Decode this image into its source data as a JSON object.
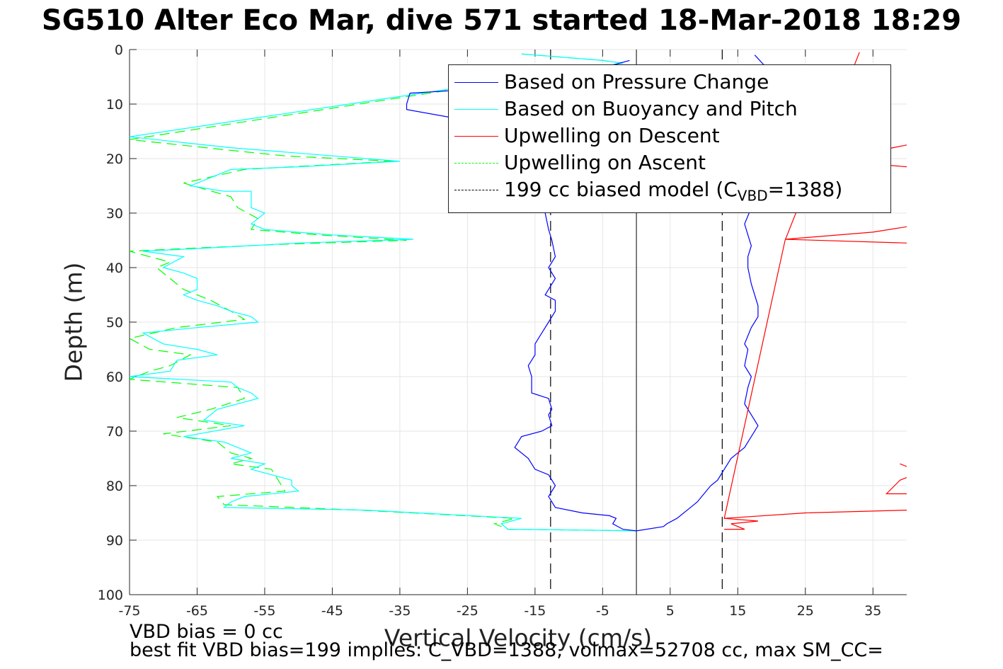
{
  "title": "SG510 Alter Eco Mar, dive 571 started 18-Mar-2018 18:29",
  "footnote1": "VBD bias = 0 cc",
  "footnote2": "best fit VBD bias=199 implies: C_VBD=1388, volmax=52708 cc, max SM_CC=",
  "chart_data": {
    "type": "line",
    "xlabel": "Vertical Velocity (cm/s)",
    "ylabel": "Depth (m)",
    "xlim": [
      -75,
      40
    ],
    "ylim": [
      0,
      100
    ],
    "y_reversed": true,
    "xticks": [
      -75,
      -65,
      -55,
      -45,
      -35,
      -25,
      -15,
      -5,
      5,
      15,
      25,
      35
    ],
    "yticks": [
      0,
      10,
      20,
      30,
      40,
      50,
      60,
      70,
      80,
      90,
      100
    ],
    "grid": true,
    "legend_position": "top-right",
    "series": [
      {
        "name": "Based on Pressure Change",
        "color": "#0000ff",
        "style": "solid",
        "points": [
          [
            -1,
            2
          ],
          [
            -4,
            3
          ],
          [
            -10,
            5
          ],
          [
            -20,
            7
          ],
          [
            -33.5,
            8
          ],
          [
            -34,
            10
          ],
          [
            -34,
            11
          ],
          [
            -25,
            13
          ],
          [
            -15,
            15
          ],
          [
            -13.5,
            30
          ],
          [
            -13,
            33
          ],
          [
            -12.5,
            35
          ],
          [
            -12,
            38
          ],
          [
            -13,
            40
          ],
          [
            -12,
            42
          ],
          [
            -13.5,
            45
          ],
          [
            -12,
            46
          ],
          [
            -12,
            48
          ],
          [
            -13,
            50
          ],
          [
            -14,
            52
          ],
          [
            -15,
            54
          ],
          [
            -15,
            56
          ],
          [
            -16,
            58
          ],
          [
            -15.5,
            60
          ],
          [
            -15.5,
            63
          ],
          [
            -13,
            64
          ],
          [
            -12.5,
            66
          ],
          [
            -13,
            67
          ],
          [
            -12.5,
            69
          ],
          [
            -14,
            70
          ],
          [
            -17,
            71
          ],
          [
            -18,
            73
          ],
          [
            -16,
            75
          ],
          [
            -15,
            77
          ],
          [
            -13,
            78
          ],
          [
            -12,
            80
          ],
          [
            -13,
            82
          ],
          [
            -12,
            84
          ],
          [
            -8,
            85
          ],
          [
            -4,
            85.5
          ],
          [
            -3,
            86
          ],
          [
            -3.5,
            87
          ],
          [
            -2,
            88
          ],
          [
            0,
            88.3
          ],
          [
            4,
            87.5
          ],
          [
            4.5,
            87
          ],
          [
            6,
            86
          ],
          [
            8,
            84
          ],
          [
            9,
            83
          ],
          [
            10,
            81.5
          ],
          [
            11,
            80
          ],
          [
            12,
            79
          ],
          [
            13,
            77
          ],
          [
            14,
            75
          ],
          [
            15,
            74
          ],
          [
            16,
            73
          ],
          [
            18,
            69
          ],
          [
            17,
            67
          ],
          [
            16,
            65
          ],
          [
            16.5,
            62
          ],
          [
            17,
            60
          ],
          [
            16,
            58
          ],
          [
            16.5,
            55
          ],
          [
            16,
            54
          ],
          [
            17,
            51
          ],
          [
            18,
            49
          ],
          [
            18,
            47
          ],
          [
            17,
            43
          ],
          [
            16.5,
            40
          ],
          [
            16.5,
            38
          ],
          [
            17,
            36
          ],
          [
            16.5,
            34
          ],
          [
            16,
            32
          ],
          [
            17,
            29
          ],
          [
            18,
            15
          ],
          [
            19,
            3
          ],
          [
            17.5,
            1
          ]
        ]
      },
      {
        "name": "Based on Buoyancy and Pitch",
        "color": "#00ffff",
        "style": "solid",
        "points": [
          [
            -17,
            0.8
          ],
          [
            -10,
            1.5
          ],
          [
            -5,
            2
          ],
          [
            -2,
            2.5
          ],
          [
            -75,
            16
          ],
          [
            -60,
            18
          ],
          [
            -50,
            19
          ],
          [
            -35,
            20.5
          ],
          [
            -50,
            21.5
          ],
          [
            -60,
            22
          ],
          [
            -66,
            25
          ],
          [
            -61,
            26
          ],
          [
            -57,
            26
          ],
          [
            -57,
            28.5
          ],
          [
            -57,
            29
          ],
          [
            -55,
            30
          ],
          [
            -56,
            31
          ],
          [
            -57,
            32
          ],
          [
            -55,
            33
          ],
          [
            -45,
            34
          ],
          [
            -33,
            34.8
          ],
          [
            -50,
            35.5
          ],
          [
            -65,
            36.5
          ],
          [
            -73,
            37
          ],
          [
            -67,
            38
          ],
          [
            -70,
            40
          ],
          [
            -67,
            41
          ],
          [
            -65,
            42
          ],
          [
            -65,
            44
          ],
          [
            -67,
            45
          ],
          [
            -65,
            46
          ],
          [
            -62,
            47
          ],
          [
            -60,
            48
          ],
          [
            -57,
            49
          ],
          [
            -56,
            50
          ],
          [
            -65,
            51
          ],
          [
            -73,
            52
          ],
          [
            -70,
            54
          ],
          [
            -65,
            55
          ],
          [
            -62,
            56
          ],
          [
            -68,
            57
          ],
          [
            -69,
            59
          ],
          [
            -75,
            60
          ],
          [
            -60,
            61
          ],
          [
            -59,
            62
          ],
          [
            -57,
            63
          ],
          [
            -56,
            64
          ],
          [
            -62,
            66
          ],
          [
            -64,
            68
          ],
          [
            -58,
            69
          ],
          [
            -67,
            71
          ],
          [
            -61,
            72
          ],
          [
            -57,
            74
          ],
          [
            -60,
            75
          ],
          [
            -55,
            76
          ],
          [
            -57,
            77
          ],
          [
            -54,
            78
          ],
          [
            -51,
            79
          ],
          [
            -51,
            80
          ],
          [
            -50,
            81
          ],
          [
            -58,
            82
          ],
          [
            -60,
            83
          ],
          [
            -61,
            84
          ],
          [
            -40,
            84.5
          ],
          [
            -17,
            86
          ],
          [
            -20,
            87
          ],
          [
            -19,
            88
          ],
          [
            -5,
            88.2
          ],
          [
            0,
            88.3
          ]
        ]
      },
      {
        "name": "Upwelling on Descent",
        "color": "#ff0000",
        "style": "solid",
        "points": [
          [
            33,
            0.5
          ],
          [
            22,
            35
          ],
          [
            13,
            86
          ],
          [
            18,
            86.5
          ],
          [
            14,
            87
          ],
          [
            16,
            88
          ],
          [
            13,
            88
          ]
        ]
      },
      {
        "name": "Upwelling on Ascent",
        "color": "#00ff00",
        "style": "dashed",
        "points": [
          [
            -17,
            0.8
          ],
          [
            -10,
            1.5
          ],
          [
            -5,
            2
          ],
          [
            -2,
            2.5
          ],
          [
            -75,
            16.5
          ],
          [
            -60,
            18.5
          ],
          [
            -52,
            19.5
          ],
          [
            -36,
            20.5
          ],
          [
            -51,
            21.5
          ],
          [
            -58,
            22
          ],
          [
            -67,
            24.5
          ],
          [
            -60,
            27
          ],
          [
            -59,
            29
          ],
          [
            -56,
            31
          ],
          [
            -57,
            33
          ],
          [
            -47,
            34
          ],
          [
            -34,
            35
          ],
          [
            -52,
            35.7
          ],
          [
            -67,
            36.5
          ],
          [
            -75,
            37
          ],
          [
            -69,
            39
          ],
          [
            -71,
            40
          ],
          [
            -69,
            42
          ],
          [
            -67,
            44
          ],
          [
            -63,
            46
          ],
          [
            -60,
            48
          ],
          [
            -58,
            49.5
          ],
          [
            -68,
            51
          ],
          [
            -75,
            53
          ],
          [
            -72,
            55
          ],
          [
            -66,
            56
          ],
          [
            -69,
            58
          ],
          [
            -72,
            59
          ],
          [
            -75,
            60.5
          ],
          [
            -59,
            62
          ],
          [
            -58,
            64
          ],
          [
            -63,
            66
          ],
          [
            -68,
            67.5
          ],
          [
            -60,
            69
          ],
          [
            -70,
            70.5
          ],
          [
            -62,
            72
          ],
          [
            -60,
            74
          ],
          [
            -57,
            75
          ],
          [
            -60,
            76
          ],
          [
            -54,
            77
          ],
          [
            -53,
            79
          ],
          [
            -52,
            81
          ],
          [
            -62,
            82
          ],
          [
            -61,
            83.5
          ],
          [
            -41,
            84.5
          ],
          [
            -18,
            86
          ],
          [
            -21,
            87
          ],
          [
            -19,
            88
          ],
          [
            -5,
            88.2
          ],
          [
            0,
            88.3
          ]
        ]
      },
      {
        "name": "199 cc biased model (C_VBD=1388)",
        "color": "#000000",
        "style": "dashed",
        "vertical_lines_x": [
          -12.7,
          12.7
        ]
      }
    ],
    "reference_line_x": 0,
    "legend_model_label_parts": [
      "199 cc biased model (C",
      "VBD",
      "=1388)"
    ],
    "right_edge_fragments_red": [
      {
        "points": [
          [
            40,
            17.5
          ],
          [
            38,
            18
          ],
          [
            34,
            19
          ]
        ]
      },
      {
        "points": [
          [
            40,
            21.5
          ],
          [
            35,
            21
          ]
        ]
      },
      {
        "points": [
          [
            40,
            32.5
          ],
          [
            35,
            33.5
          ],
          [
            22,
            34.8
          ],
          [
            40,
            35.5
          ]
        ]
      },
      {
        "points": [
          [
            40,
            76.5
          ],
          [
            39,
            76
          ]
        ]
      },
      {
        "points": [
          [
            40,
            78.5
          ],
          [
            39,
            79
          ],
          [
            37,
            81.5
          ],
          [
            40,
            81.5
          ]
        ]
      },
      {
        "points": [
          [
            40,
            84.5
          ],
          [
            25,
            85
          ],
          [
            13,
            86
          ]
        ]
      }
    ]
  }
}
